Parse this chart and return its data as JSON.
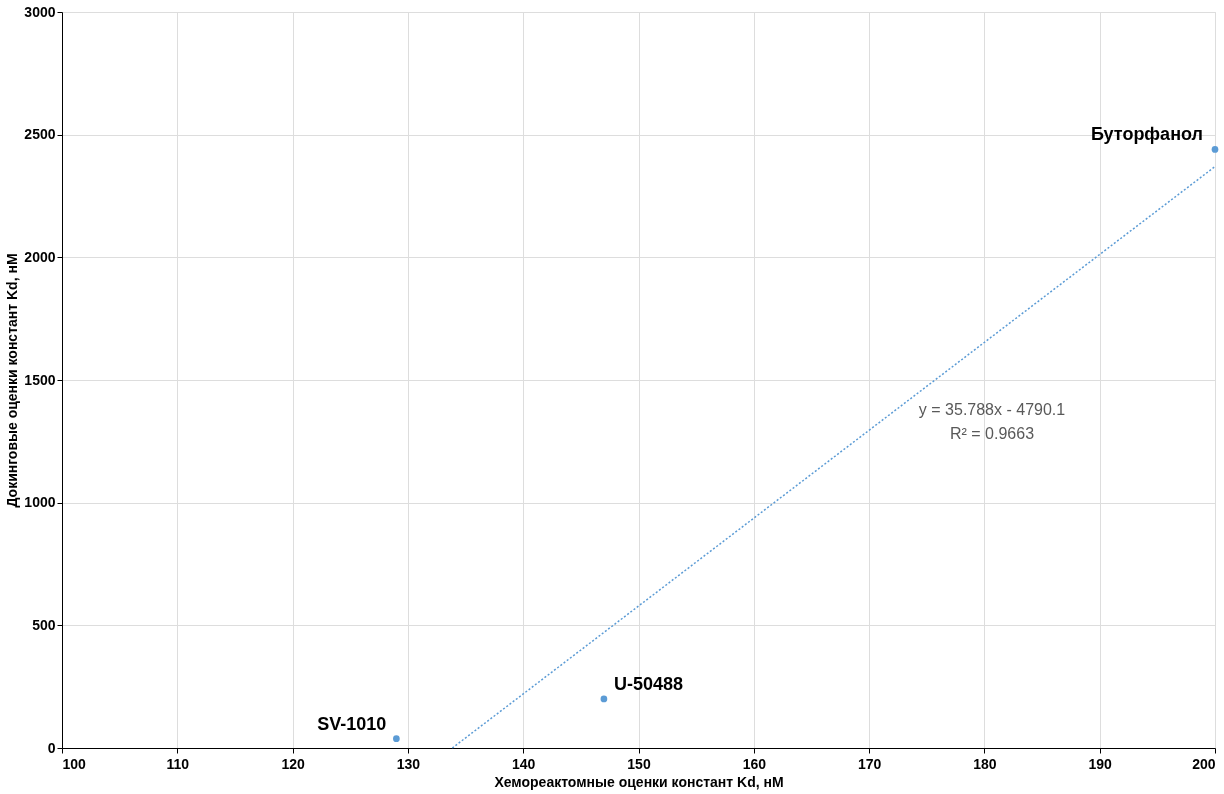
{
  "chart_data": {
    "type": "scatter",
    "xlabel": "Хемореактомные оценки констант Kd, нМ",
    "ylabel": "Докинговые оценки констант Kd, нМ",
    "xlim": [
      100,
      200
    ],
    "xticks": [
      100,
      110,
      120,
      130,
      140,
      150,
      160,
      170,
      180,
      190,
      200
    ],
    "ylim": [
      0,
      3000
    ],
    "yticks": [
      0,
      500,
      1000,
      1500,
      2000,
      2500,
      3000
    ],
    "grid": true,
    "marker": "circle",
    "series": [
      {
        "color": "#5b9bd5",
        "x": [
          129,
          147,
          200
        ],
        "values": [
          38,
          200,
          2440
        ]
      },
      {
        "type": "line",
        "color": "#5b9bd5",
        "line_style": "dotted",
        "marker": "none",
        "x": [
          133.85,
          200
        ],
        "values": [
          0,
          2370
        ]
      }
    ],
    "annotations": [
      {
        "text": "SV-1010",
        "x": 129,
        "y": 38
      },
      {
        "text": "U-50488",
        "x": 147,
        "y": 200
      },
      {
        "text": "Буторфанол",
        "x": 200,
        "y": 2440
      },
      "y = 35.788x - 4790.1",
      "R² = 0.9663"
    ]
  }
}
